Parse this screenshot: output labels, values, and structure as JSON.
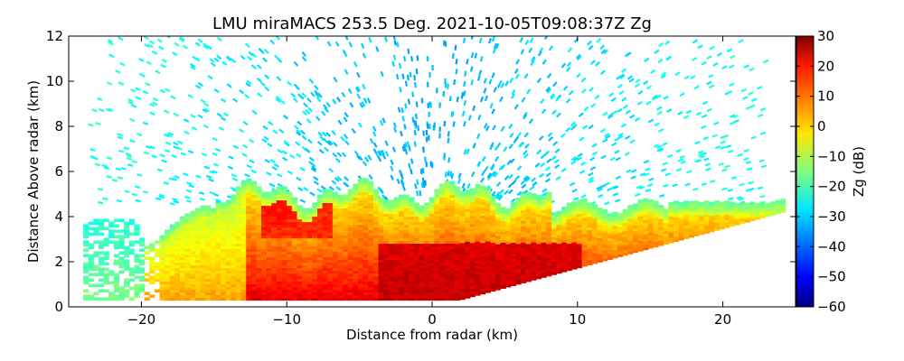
{
  "chart_data": {
    "type": "heatmap",
    "title": "LMU miraMACS 253.5 Deg. 2021-10-05T09:08:37Z  Zg",
    "xlabel": "Distance from radar (km)",
    "ylabel": "Distance Above radar  (km)",
    "xlim": [
      -25,
      25
    ],
    "ylim": [
      0,
      12
    ],
    "xticks": [
      "−20",
      "−10",
      "0",
      "10",
      "20"
    ],
    "xtick_values": [
      -20,
      -10,
      0,
      10,
      20
    ],
    "yticks": [
      "0",
      "2",
      "4",
      "6",
      "8",
      "10",
      "12"
    ],
    "ytick_values": [
      0,
      2,
      4,
      6,
      8,
      10,
      12
    ],
    "colorbar": {
      "label": "Zg (dB)",
      "range": [
        -60,
        30
      ],
      "ticks": [
        "30",
        "20",
        "10",
        "0",
        "−10",
        "−20",
        "−30",
        "−40",
        "−50",
        "−60"
      ],
      "tick_values": [
        30,
        20,
        10,
        0,
        -10,
        -20,
        -30,
        -40,
        -50,
        -60
      ],
      "colormap": "jet"
    },
    "features": {
      "radar_position_km": 0,
      "cloud_top_km": 5.5,
      "scan_edge_right": [
        [
          0,
          0
        ],
        [
          24,
          4.2
        ]
      ],
      "high_reflectivity_layer_km": [
        0,
        2.8
      ],
      "sparse_echo_top_km": 12
    }
  }
}
